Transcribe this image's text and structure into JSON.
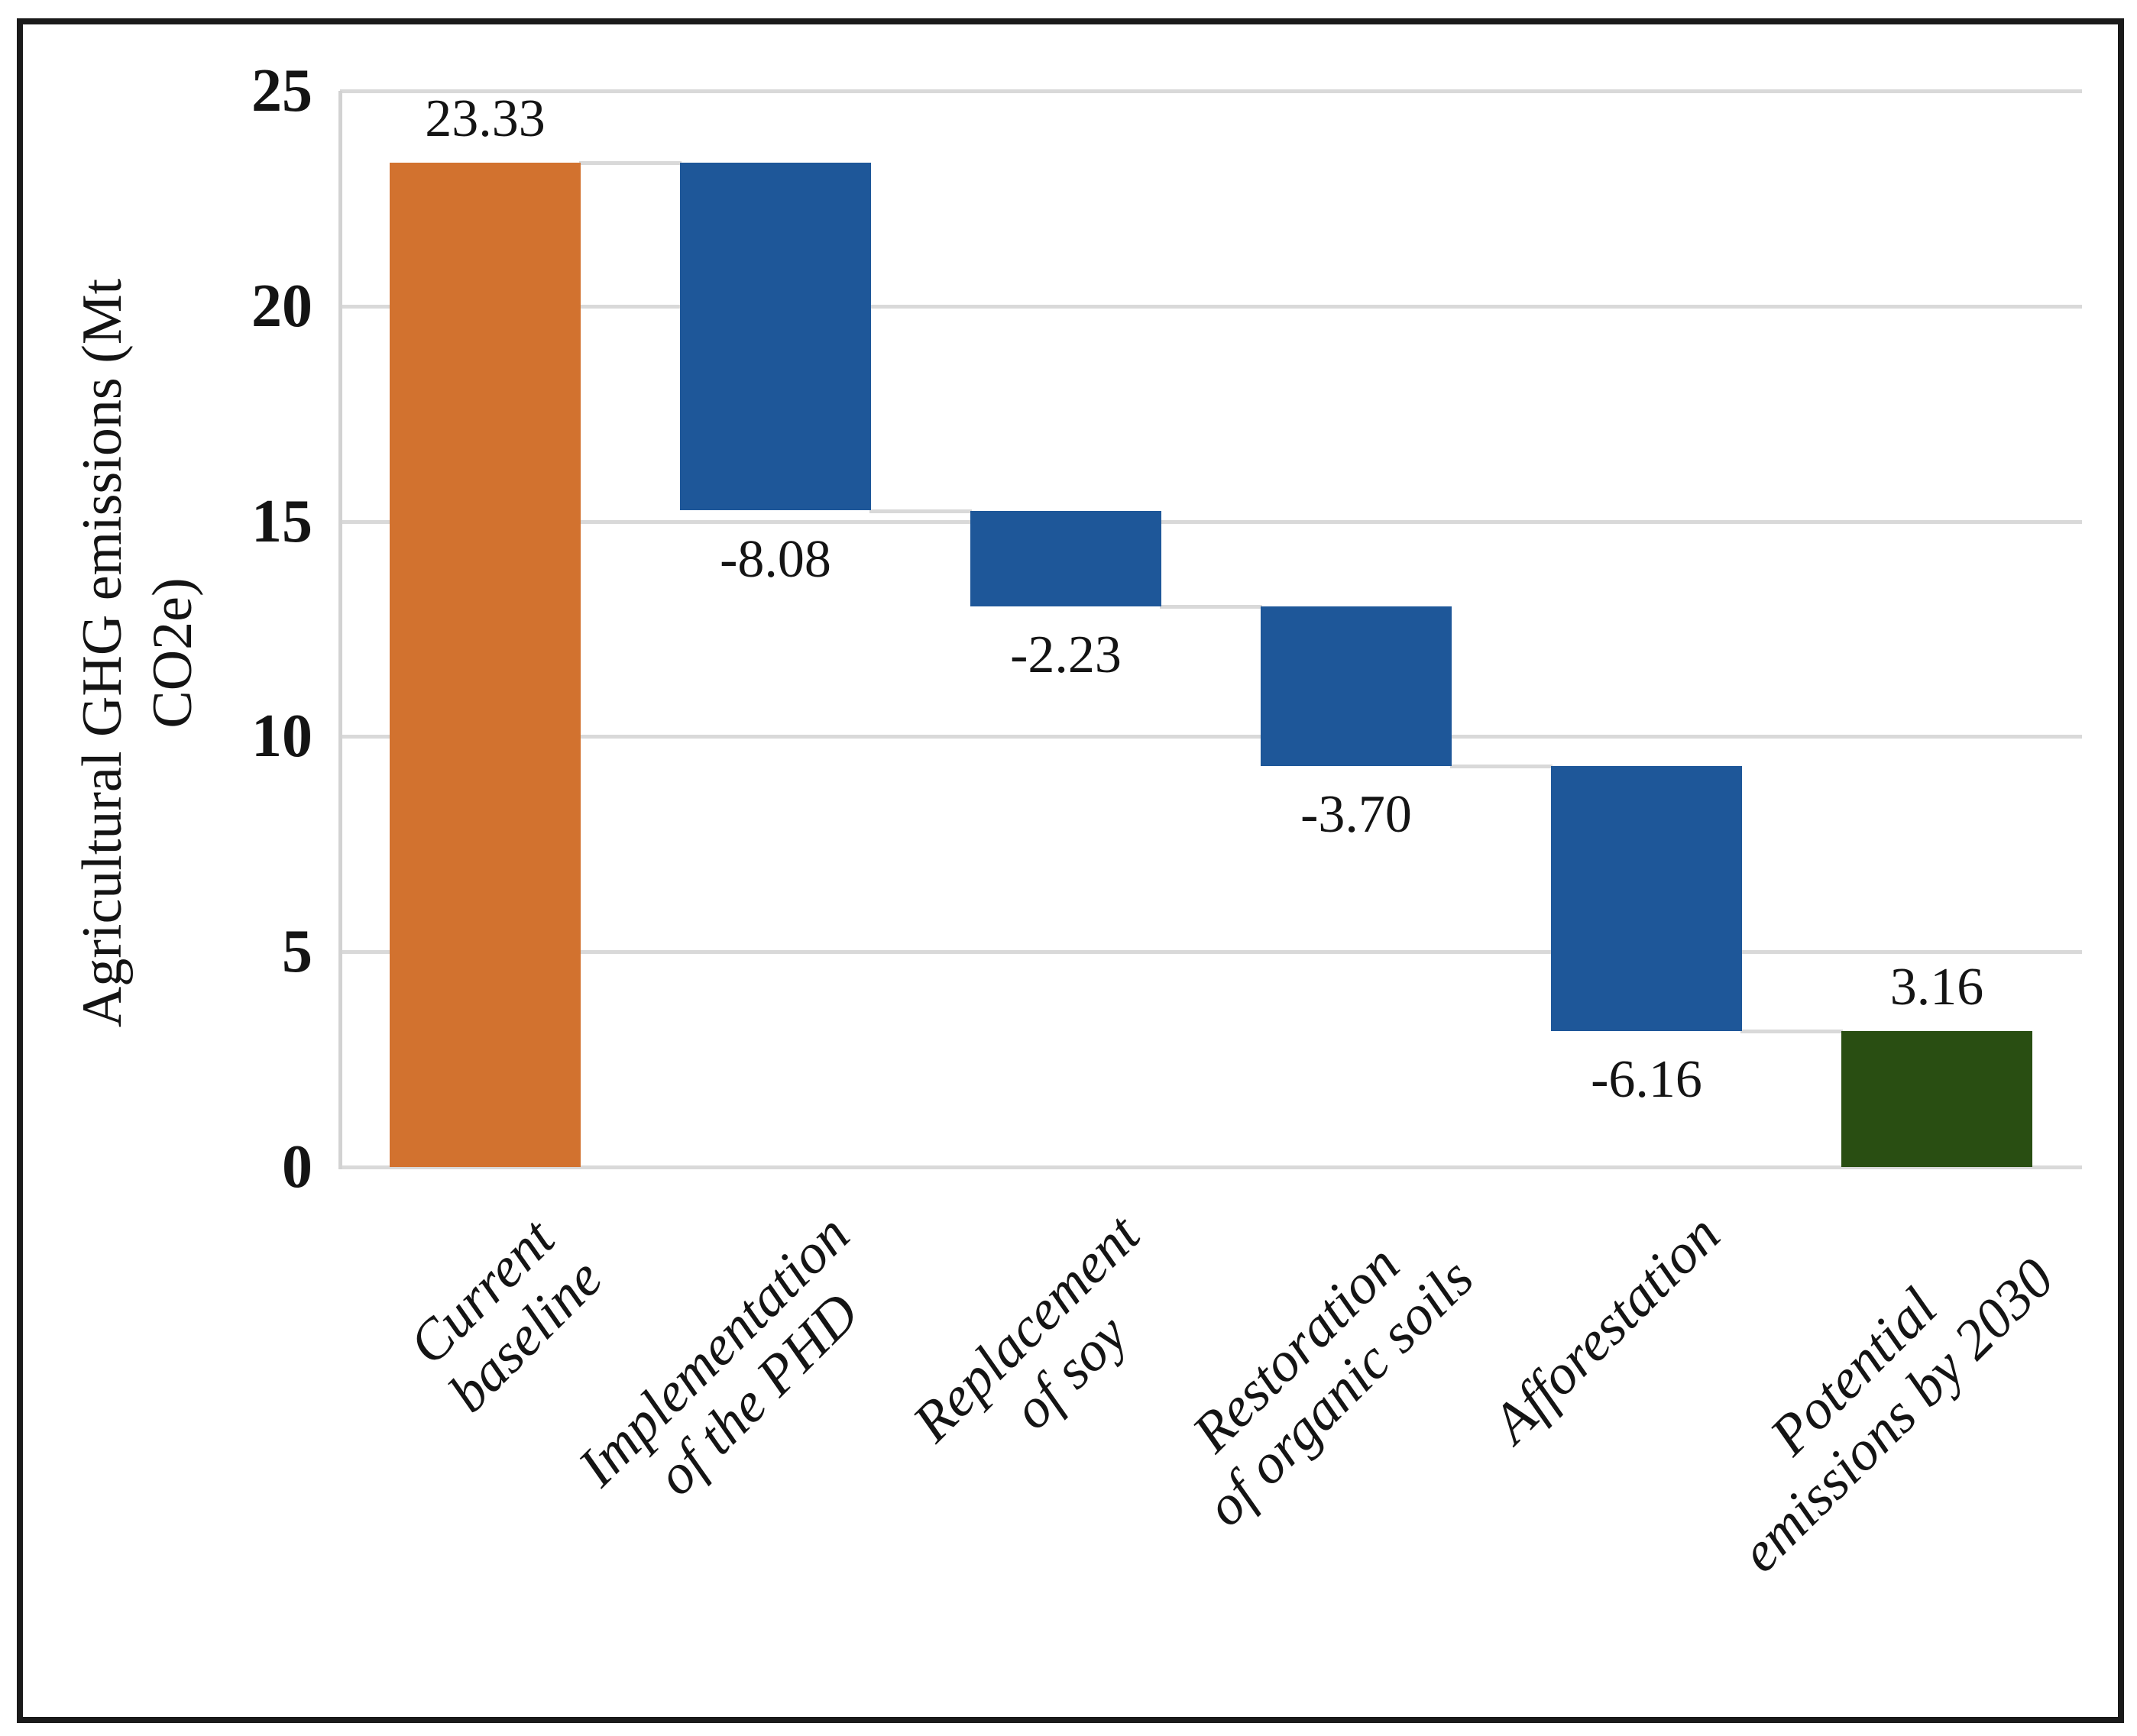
{
  "chart_data": {
    "type": "bar",
    "subtype": "waterfall",
    "title": "",
    "ylabel": "Agricultural GHG emissions (Mt CO2e)",
    "ylabel_lines": [
      "Agricultural GHG emissions (Mt",
      "CO2e)"
    ],
    "ylim": [
      0,
      25
    ],
    "yticks": [
      0,
      5,
      10,
      15,
      20,
      25
    ],
    "grid": "horizontal",
    "legend": "none",
    "categories": [
      "Current baseline",
      "Implementation of the PHD",
      "Replacement of soy",
      "Restoration of organic soils",
      "Afforestation",
      "Potential emissions by 2030"
    ],
    "category_lines": [
      [
        "Current",
        "baseline"
      ],
      [
        "Implementation",
        "of the PHD"
      ],
      [
        "Replacement",
        "of soy"
      ],
      [
        "Restoration",
        "of organic soils"
      ],
      [
        "Afforestation"
      ],
      [
        "Potential",
        "emissions by 2030"
      ]
    ],
    "bars": [
      {
        "category": "Current baseline",
        "value": 23.33,
        "label": "23.33",
        "kind": "base",
        "start": 0,
        "end": 23.33,
        "label_side": "above"
      },
      {
        "category": "Implementation of the PHD",
        "value": -8.08,
        "label": "-8.08",
        "kind": "decrease",
        "start": 23.33,
        "end": 15.25,
        "label_side": "below"
      },
      {
        "category": "Replacement of soy",
        "value": -2.23,
        "label": "-2.23",
        "kind": "decrease",
        "start": 15.25,
        "end": 13.02,
        "label_side": "below"
      },
      {
        "category": "Restoration of organic soils",
        "value": -3.7,
        "label": "-3.70",
        "kind": "decrease",
        "start": 13.02,
        "end": 9.32,
        "label_side": "below"
      },
      {
        "category": "Afforestation",
        "value": -6.16,
        "label": "-6.16",
        "kind": "decrease",
        "start": 9.32,
        "end": 3.16,
        "label_side": "below"
      },
      {
        "category": "Potential emissions by 2030",
        "value": 3.16,
        "label": "3.16",
        "kind": "total",
        "start": 0,
        "end": 3.16,
        "label_side": "above"
      }
    ],
    "colors": {
      "base": "#d2722f",
      "decrease": "#1e5799",
      "total": "#294e12",
      "gridline": "#d9d9d9",
      "connector": "#d9d9d9",
      "spine": "#d2d2d2",
      "text": "#141414",
      "frame": "#1a1a1a",
      "background": "#ffffff"
    }
  }
}
